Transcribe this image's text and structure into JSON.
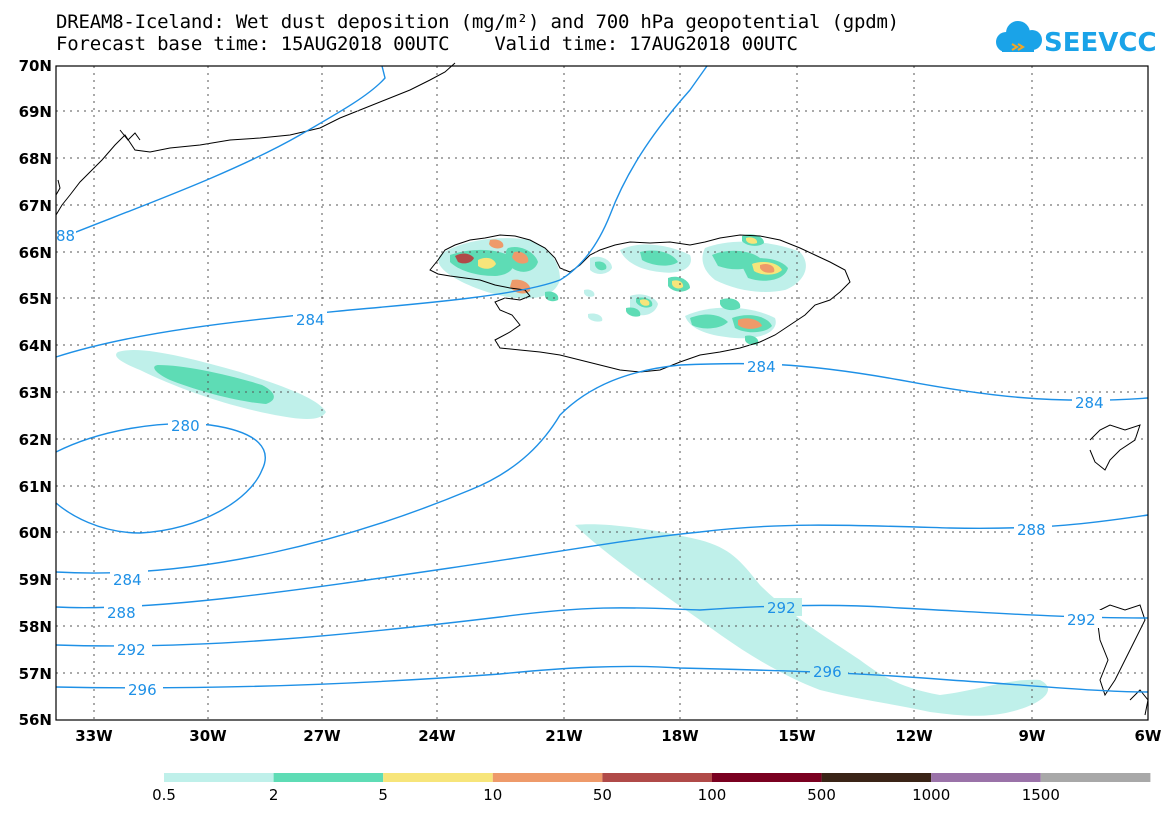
{
  "title": {
    "line1": "DREAM8-Iceland: Wet dust deposition (mg/m²) and 700 hPa geopotential (gpdm)",
    "line2": "Forecast base time: 15AUG2018 00UTC    Valid time: 17AUG2018 00UTC"
  },
  "logo": {
    "text": "SEEVCCC",
    "icon": "cloud-icon",
    "color": "#1aa3e8"
  },
  "map": {
    "lat_labels": [
      "70N",
      "69N",
      "68N",
      "67N",
      "66N",
      "65N",
      "64N",
      "63N",
      "62N",
      "61N",
      "60N",
      "59N",
      "58N",
      "57N",
      "56N"
    ],
    "lon_labels": [
      "33W",
      "30W",
      "27W",
      "24W",
      "21W",
      "18W",
      "15W",
      "12W",
      "9W",
      "6W"
    ],
    "contour_labels": [
      {
        "text": "88"
      },
      {
        "text": "284"
      },
      {
        "text": "280"
      },
      {
        "text": "284"
      },
      {
        "text": "288"
      },
      {
        "text": "292"
      },
      {
        "text": "296"
      },
      {
        "text": "284"
      },
      {
        "text": "284"
      },
      {
        "text": "288"
      },
      {
        "text": "292"
      },
      {
        "text": "292"
      },
      {
        "text": "296"
      }
    ],
    "contour_color": "#1e90e6"
  },
  "legend": {
    "labels": [
      "0.5",
      "2",
      "5",
      "10",
      "50",
      "100",
      "500",
      "1000",
      "1500"
    ],
    "colors": [
      "#bff0ea",
      "#5edcb5",
      "#f7e57a",
      "#ee9a6a",
      "#b04a48",
      "#7a0020",
      "#3a2416",
      "#9a72a8",
      "#a8a8a8"
    ]
  }
}
